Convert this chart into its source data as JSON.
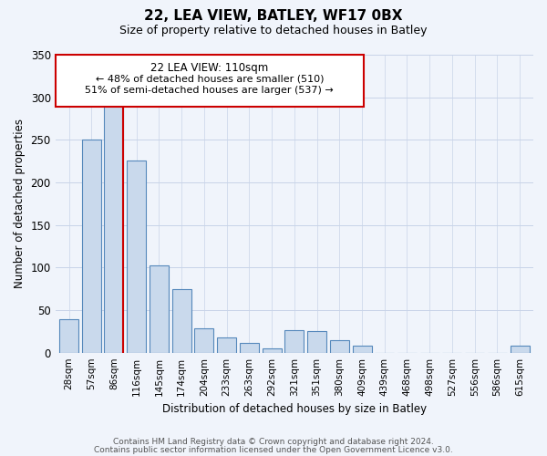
{
  "title": "22, LEA VIEW, BATLEY, WF17 0BX",
  "subtitle": "Size of property relative to detached houses in Batley",
  "xlabel": "Distribution of detached houses by size in Batley",
  "ylabel": "Number of detached properties",
  "bar_labels": [
    "28sqm",
    "57sqm",
    "86sqm",
    "116sqm",
    "145sqm",
    "174sqm",
    "204sqm",
    "233sqm",
    "263sqm",
    "292sqm",
    "321sqm",
    "351sqm",
    "380sqm",
    "409sqm",
    "439sqm",
    "468sqm",
    "498sqm",
    "527sqm",
    "556sqm",
    "586sqm",
    "615sqm"
  ],
  "bar_values": [
    39,
    250,
    292,
    226,
    103,
    75,
    29,
    18,
    11,
    5,
    26,
    25,
    15,
    8,
    0,
    0,
    0,
    0,
    0,
    0,
    8
  ],
  "bar_color": "#c9d9ec",
  "bar_edge_color": "#5588bb",
  "ylim": [
    0,
    350
  ],
  "yticks": [
    0,
    50,
    100,
    150,
    200,
    250,
    300,
    350
  ],
  "marker_label": "22 LEA VIEW: 110sqm",
  "annotation_line1": "← 48% of detached houses are smaller (510)",
  "annotation_line2": "51% of semi-detached houses are larger (537) →",
  "marker_color": "#cc0000",
  "box_edge_color": "#cc0000",
  "footer1": "Contains HM Land Registry data © Crown copyright and database right 2024.",
  "footer2": "Contains public sector information licensed under the Open Government Licence v3.0.",
  "background_color": "#f0f4fb",
  "grid_color": "#c8d4e8"
}
